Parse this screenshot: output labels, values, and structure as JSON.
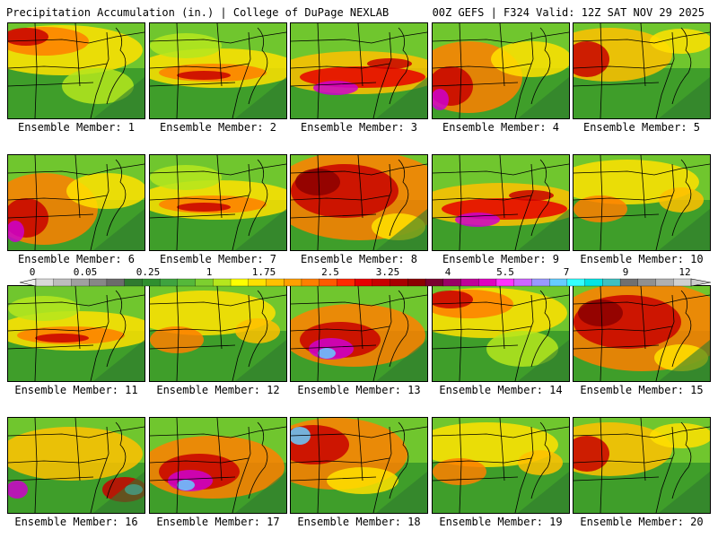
{
  "header": {
    "left": "Precipitation Accumulation (in.) | College of DuPage NEXLAB",
    "right": "00Z GEFS | F324 Valid: 12Z SAT NOV 29 2025"
  },
  "panels": [
    {
      "label": "Ensemble Member: 1",
      "pattern": "north-heavy"
    },
    {
      "label": "Ensemble Member: 2",
      "pattern": "central-band"
    },
    {
      "label": "Ensemble Member: 3",
      "pattern": "central-band-max"
    },
    {
      "label": "Ensemble Member: 4",
      "pattern": "west-max"
    },
    {
      "label": "Ensemble Member: 5",
      "pattern": "northwest"
    },
    {
      "label": "Ensemble Member: 6",
      "pattern": "west-max"
    },
    {
      "label": "Ensemble Member: 7",
      "pattern": "central-band"
    },
    {
      "label": "Ensemble Member: 8",
      "pattern": "widespread-heavy"
    },
    {
      "label": "Ensemble Member: 9",
      "pattern": "central-band-max"
    },
    {
      "label": "Ensemble Member: 10",
      "pattern": "light"
    },
    {
      "label": "Ensemble Member: 11",
      "pattern": "central-band"
    },
    {
      "label": "Ensemble Member: 12",
      "pattern": "light"
    },
    {
      "label": "Ensemble Member: 13",
      "pattern": "southwest-max"
    },
    {
      "label": "Ensemble Member: 14",
      "pattern": "north-heavy"
    },
    {
      "label": "Ensemble Member: 15",
      "pattern": "widespread-heavy"
    },
    {
      "label": "Ensemble Member: 16",
      "pattern": "coastal-max"
    },
    {
      "label": "Ensemble Member: 17",
      "pattern": "southwest-max"
    },
    {
      "label": "Ensemble Member: 18",
      "pattern": "northwest-max"
    },
    {
      "label": "Ensemble Member: 19",
      "pattern": "light"
    },
    {
      "label": "Ensemble Member: 20",
      "pattern": "northwest"
    }
  ],
  "colorbar": {
    "tick_labels": [
      "0",
      "0.05",
      "0.25",
      "1",
      "1.75",
      "2.5",
      "3.25",
      "4",
      "5.5",
      "7",
      "9",
      "12"
    ],
    "colors": [
      "#d9d9d9",
      "#bdbdbd",
      "#a0a0a0",
      "#878787",
      "#6b6b6b",
      "#2f7a2f",
      "#2f8f2f",
      "#3fa33f",
      "#55b83a",
      "#7dcf2f",
      "#b5e61d",
      "#ffff00",
      "#ffe000",
      "#ffc000",
      "#ffa000",
      "#ff7f00",
      "#ff5a00",
      "#ff2a00",
      "#e60000",
      "#c80000",
      "#a80000",
      "#8b0000",
      "#7a0030",
      "#990066",
      "#c00099",
      "#e000c0",
      "#ff33ff",
      "#cc66ff",
      "#9999ff",
      "#66ccff",
      "#33ffff",
      "#00e5e5",
      "#40c0c0",
      "#707070",
      "#909090",
      "#b0b0b0",
      "#d0d0d0"
    ]
  }
}
